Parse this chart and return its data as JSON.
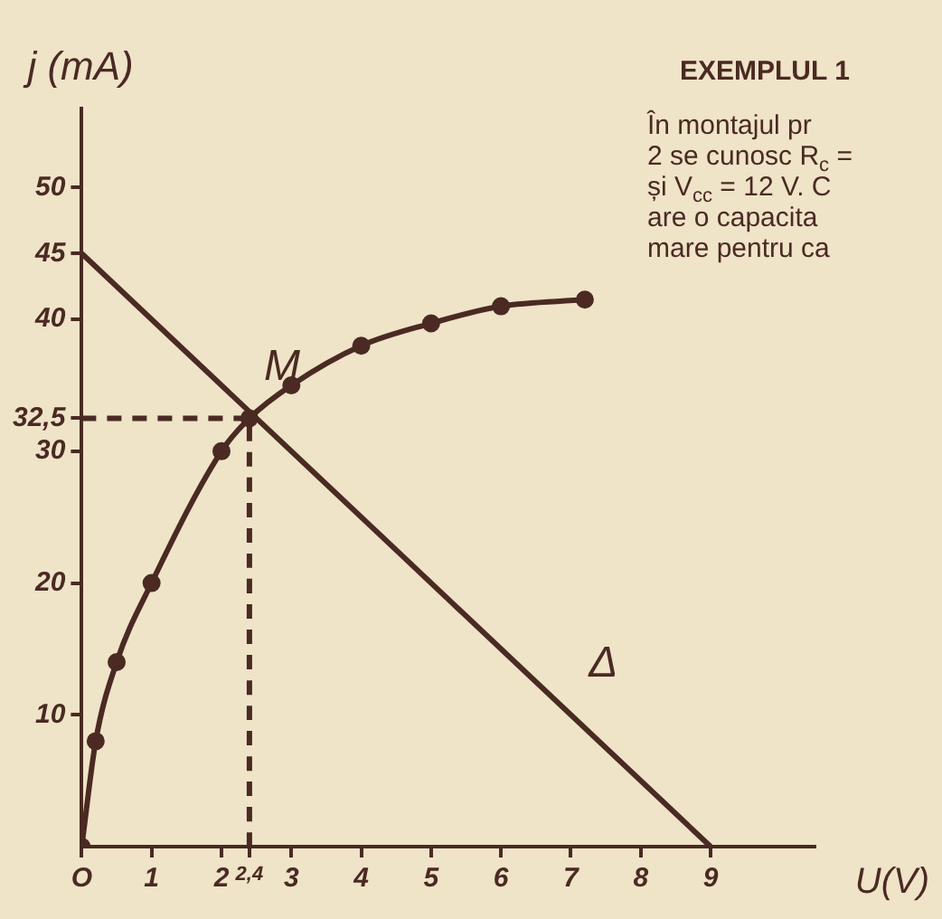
{
  "chart_data": {
    "type": "line",
    "xlabel": "U(V)",
    "ylabel": "j (mA)",
    "xlim": [
      0,
      10.5
    ],
    "ylim": [
      0,
      56
    ],
    "xticks": [
      {
        "value": 0,
        "label": "O"
      },
      1,
      2,
      {
        "value": 2.4,
        "label": "2,4"
      },
      3,
      4,
      5,
      6,
      7,
      8,
      9
    ],
    "yticks": [
      10,
      20,
      30,
      {
        "value": 32.5,
        "label": "32,5"
      },
      40,
      45,
      50
    ],
    "grid": false,
    "legend": false,
    "series": [
      {
        "color": "#4a2a22",
        "marker": "circle",
        "x": [
          0,
          0.2,
          0.5,
          1,
          2,
          2.4,
          3,
          4,
          5,
          6,
          7.2
        ],
        "values": [
          0,
          8,
          14,
          20,
          30,
          32.5,
          35,
          38,
          39.7,
          41,
          41.5
        ]
      },
      {
        "color": "#4a2a22",
        "marker": "none",
        "x": [
          0,
          9
        ],
        "values": [
          45,
          0
        ]
      },
      {
        "color": "#4a2a22",
        "marker": "none",
        "line_style": "dashed",
        "x": [
          0,
          2.4
        ],
        "values": [
          32.5,
          32.5
        ]
      },
      {
        "color": "#4a2a22",
        "marker": "none",
        "line_style": "dashed",
        "x": [
          2.4,
          2.4
        ],
        "values": [
          0,
          32.5
        ]
      }
    ],
    "annotations": [
      {
        "text": "M",
        "x": 2.4,
        "y": 32.5
      },
      {
        "text": "Δ",
        "x": 7,
        "y": 10
      },
      "EXEMPLUL 1",
      "În montajul pr",
      "2 se cunosc R$_{c}$ =",
      "și V$_{cc}$ = 12 V. C",
      "are o capacita",
      "mare pentru ca"
    ]
  }
}
